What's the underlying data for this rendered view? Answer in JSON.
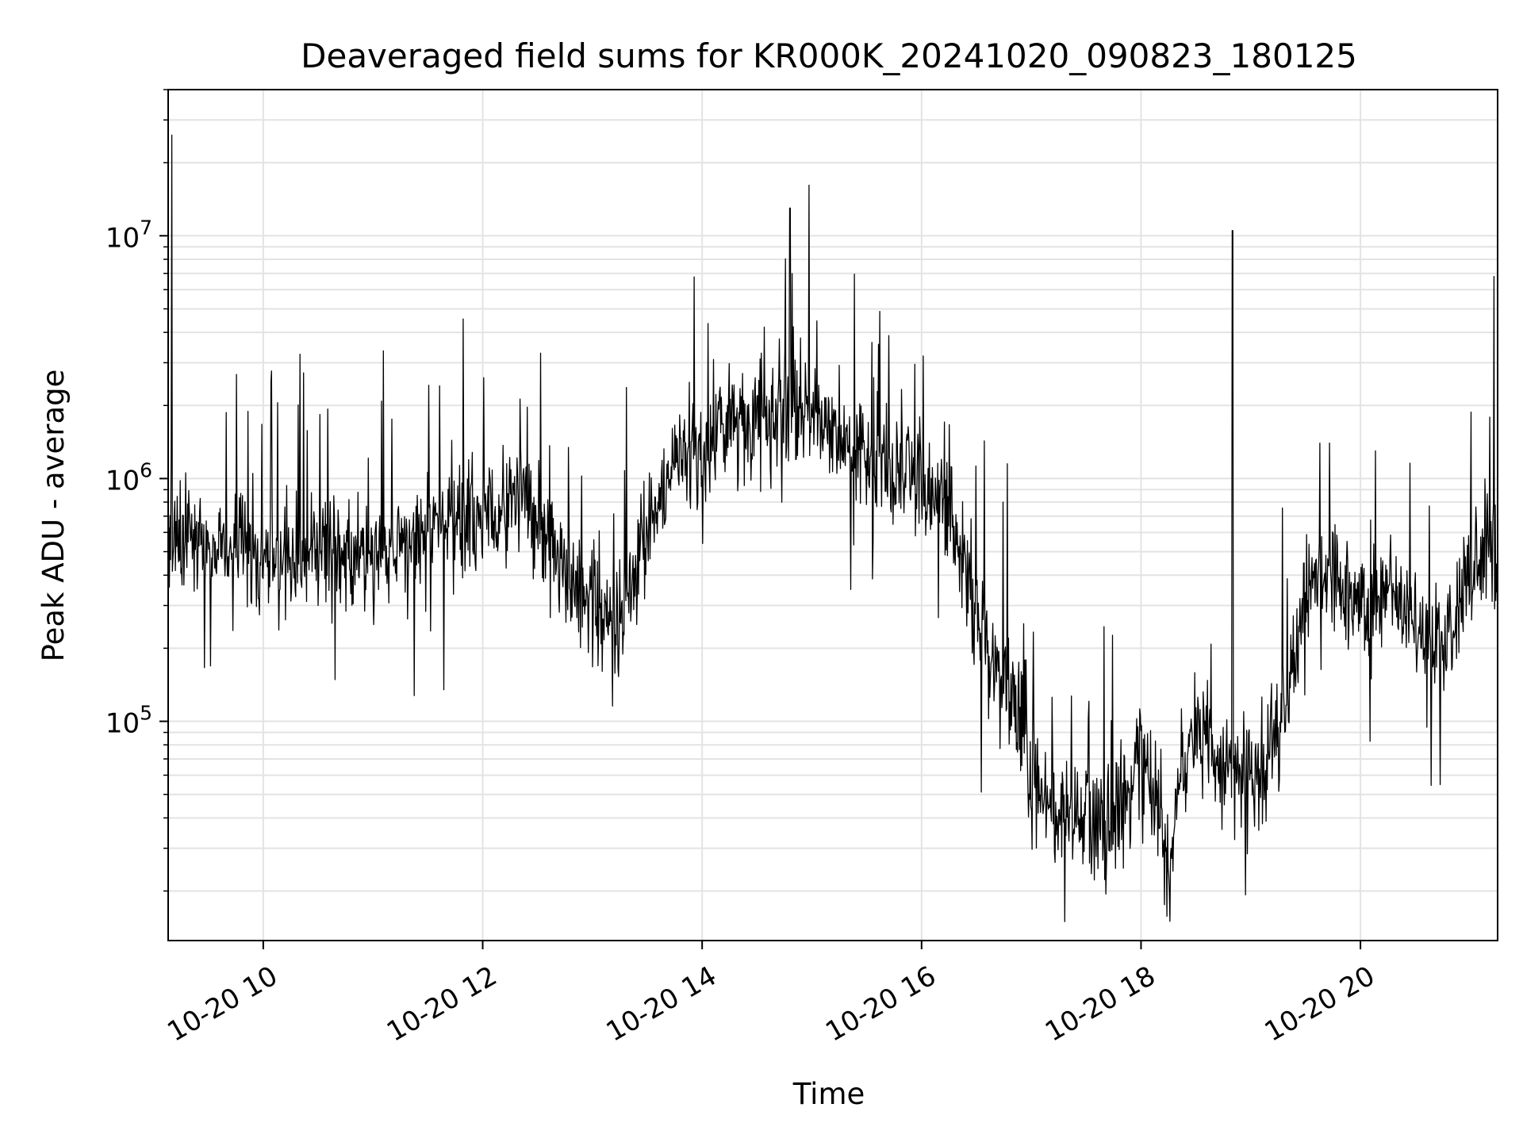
{
  "chart_data": {
    "type": "line",
    "title": "Deaveraged field sums for KR000K_20241020_090823_180125",
    "xlabel": "Time",
    "ylabel": "Peak ADU - average",
    "yscale": "log",
    "grid": true,
    "legend": "none",
    "xlim": [
      "2024-10-20 09:08",
      "2024-10-20 21:15"
    ],
    "ylim": [
      12500,
      40000000
    ],
    "x_ticks": [
      {
        "value": "2024-10-20 10:00",
        "label": "10-20 10"
      },
      {
        "value": "2024-10-20 12:00",
        "label": "10-20 12"
      },
      {
        "value": "2024-10-20 14:00",
        "label": "10-20 14"
      },
      {
        "value": "2024-10-20 16:00",
        "label": "10-20 16"
      },
      {
        "value": "2024-10-20 18:00",
        "label": "10-20 18"
      },
      {
        "value": "2024-10-20 20:00",
        "label": "10-20 20"
      }
    ],
    "y_ticks": [
      {
        "value": 100000,
        "base": "10",
        "exp": "5"
      },
      {
        "value": 1000000,
        "base": "10",
        "exp": "6"
      },
      {
        "value": 10000000,
        "base": "10",
        "exp": "7"
      }
    ],
    "series": [
      {
        "color": "#000000",
        "x": [
          "2024-10-20 09:08",
          "2024-10-20 09:15",
          "2024-10-20 09:30",
          "2024-10-20 09:45",
          "2024-10-20 10:00",
          "2024-10-20 10:15",
          "2024-10-20 10:30",
          "2024-10-20 10:45",
          "2024-10-20 11:00",
          "2024-10-20 11:15",
          "2024-10-20 11:30",
          "2024-10-20 11:45",
          "2024-10-20 12:00",
          "2024-10-20 12:15",
          "2024-10-20 12:30",
          "2024-10-20 12:45",
          "2024-10-20 13:00",
          "2024-10-20 13:15",
          "2024-10-20 13:30",
          "2024-10-20 13:45",
          "2024-10-20 14:00",
          "2024-10-20 14:15",
          "2024-10-20 14:30",
          "2024-10-20 14:45",
          "2024-10-20 15:00",
          "2024-10-20 15:15",
          "2024-10-20 15:30",
          "2024-10-20 15:45",
          "2024-10-20 16:00",
          "2024-10-20 16:15",
          "2024-10-20 16:30",
          "2024-10-20 16:45",
          "2024-10-20 17:00",
          "2024-10-20 17:15",
          "2024-10-20 17:30",
          "2024-10-20 17:45",
          "2024-10-20 18:00",
          "2024-10-20 18:15",
          "2024-10-20 18:30",
          "2024-10-20 18:45",
          "2024-10-20 19:00",
          "2024-10-20 19:15",
          "2024-10-20 19:30",
          "2024-10-20 19:45",
          "2024-10-20 20:00",
          "2024-10-20 20:15",
          "2024-10-20 20:30",
          "2024-10-20 20:45",
          "2024-10-20 21:00",
          "2024-10-20 21:15"
        ],
        "values": [
          500000,
          600000,
          550000,
          500000,
          450000,
          450000,
          480000,
          500000,
          450000,
          550000,
          600000,
          650000,
          700000,
          800000,
          700000,
          400000,
          300000,
          250000,
          600000,
          1200000,
          1300000,
          1800000,
          2000000,
          1800000,
          2000000,
          1500000,
          1200000,
          1100000,
          1000000,
          800000,
          250000,
          150000,
          60000,
          40000,
          40000,
          35000,
          80000,
          30000,
          100000,
          60000,
          60000,
          80000,
          350000,
          400000,
          250000,
          350000,
          250000,
          200000,
          400000,
          500000
        ]
      }
    ],
    "spikes": [
      {
        "x": "2024-10-20 09:10",
        "value": 26000000
      },
      {
        "x": "2024-10-20 14:48",
        "value": 13000000
      },
      {
        "x": "2024-10-20 18:50",
        "value": 10500000
      },
      {
        "x": "2024-10-20 21:13",
        "value": 6800000
      }
    ]
  }
}
